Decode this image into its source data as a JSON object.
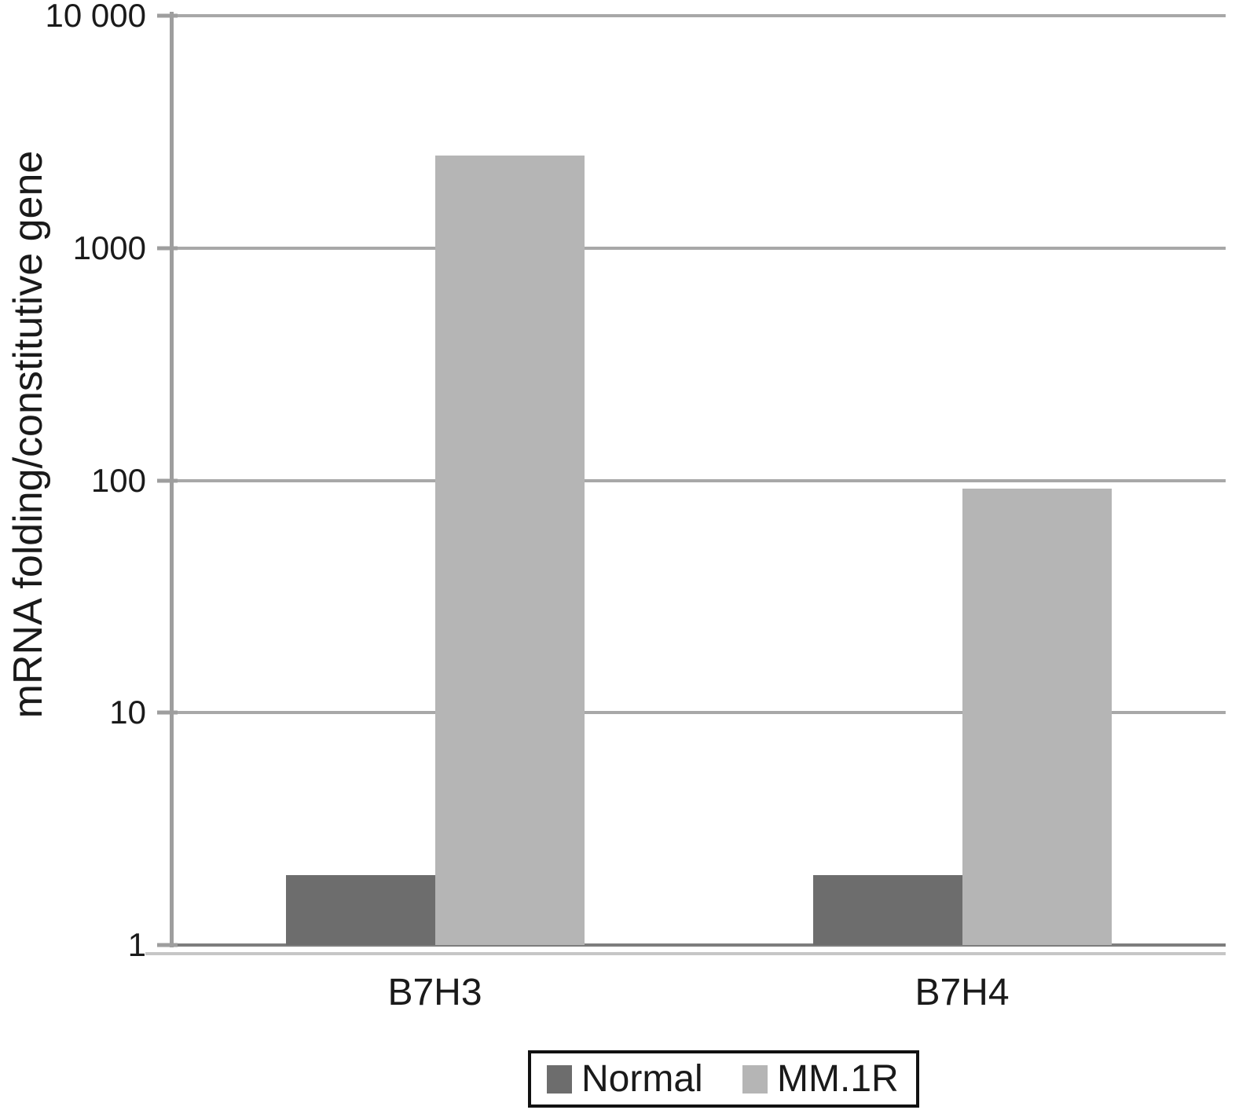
{
  "chart_data": {
    "type": "bar",
    "title": "",
    "xlabel": "",
    "ylabel": "mRNA folding/constitutive gene",
    "yscale": "log",
    "ylim": [
      1,
      10000
    ],
    "yticks": [
      {
        "value": 10000,
        "label": "10 000"
      },
      {
        "value": 1000,
        "label": "1000"
      },
      {
        "value": 100,
        "label": "100"
      },
      {
        "value": 10,
        "label": "10"
      },
      {
        "value": 1,
        "label": "1"
      }
    ],
    "categories": [
      "B7H3",
      "B7H4"
    ],
    "series": [
      {
        "name": "Normal",
        "color": "#6d6d6d",
        "values": [
          2,
          2
        ]
      },
      {
        "name": "MM.1R",
        "color": "#b5b5b5",
        "values": [
          2500,
          92
        ]
      }
    ],
    "grid": true,
    "legend_position": "bottom"
  },
  "colors": {
    "gridline": "#a8a8a8",
    "axis": "#9e9e9e",
    "baseline": "#7d7d7d",
    "sub_axis": "#c6c6c6",
    "text": "#1a1a1a",
    "legend_border": "#111111",
    "background": "#ffffff"
  }
}
